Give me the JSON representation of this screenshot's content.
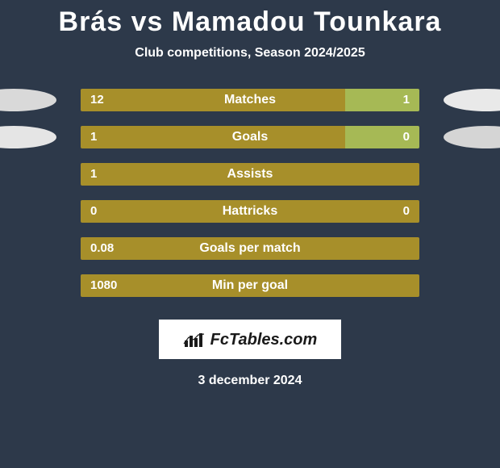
{
  "background_color": "#2d394a",
  "title": "Brás vs Mamadou Tounkara",
  "title_color": "#ffffff",
  "title_fontsize": 34,
  "subtitle": "Club competitions, Season 2024/2025",
  "subtitle_fontsize": 16,
  "player1_color": "#a78f2a",
  "player2_color": "#a6b955",
  "ellipse_colors": {
    "row0_left": "#d9d9d9",
    "row0_right": "#e9e9e9",
    "row1_left": "#e5e5e5",
    "row1_right": "#d5d5d5"
  },
  "stats_rows": [
    {
      "label": "Matches",
      "left": "12",
      "right": "1",
      "p1_pct": 78,
      "p2_pct": 22,
      "show_right": true,
      "ellipse": true
    },
    {
      "label": "Goals",
      "left": "1",
      "right": "0",
      "p1_pct": 78,
      "p2_pct": 22,
      "show_right": true,
      "ellipse": true
    },
    {
      "label": "Assists",
      "left": "1",
      "right": "",
      "p1_pct": 100,
      "p2_pct": 0,
      "show_right": false,
      "ellipse": false
    },
    {
      "label": "Hattricks",
      "left": "0",
      "right": "0",
      "p1_pct": 100,
      "p2_pct": 0,
      "show_right": true,
      "ellipse": false
    },
    {
      "label": "Goals per match",
      "left": "0.08",
      "right": "",
      "p1_pct": 100,
      "p2_pct": 0,
      "show_right": false,
      "ellipse": false
    },
    {
      "label": "Min per goal",
      "left": "1080",
      "right": "",
      "p1_pct": 100,
      "p2_pct": 0,
      "show_right": false,
      "ellipse": false
    }
  ],
  "logo_text": "FcTables.com",
  "date": "3 december 2024",
  "date_fontsize": 16
}
